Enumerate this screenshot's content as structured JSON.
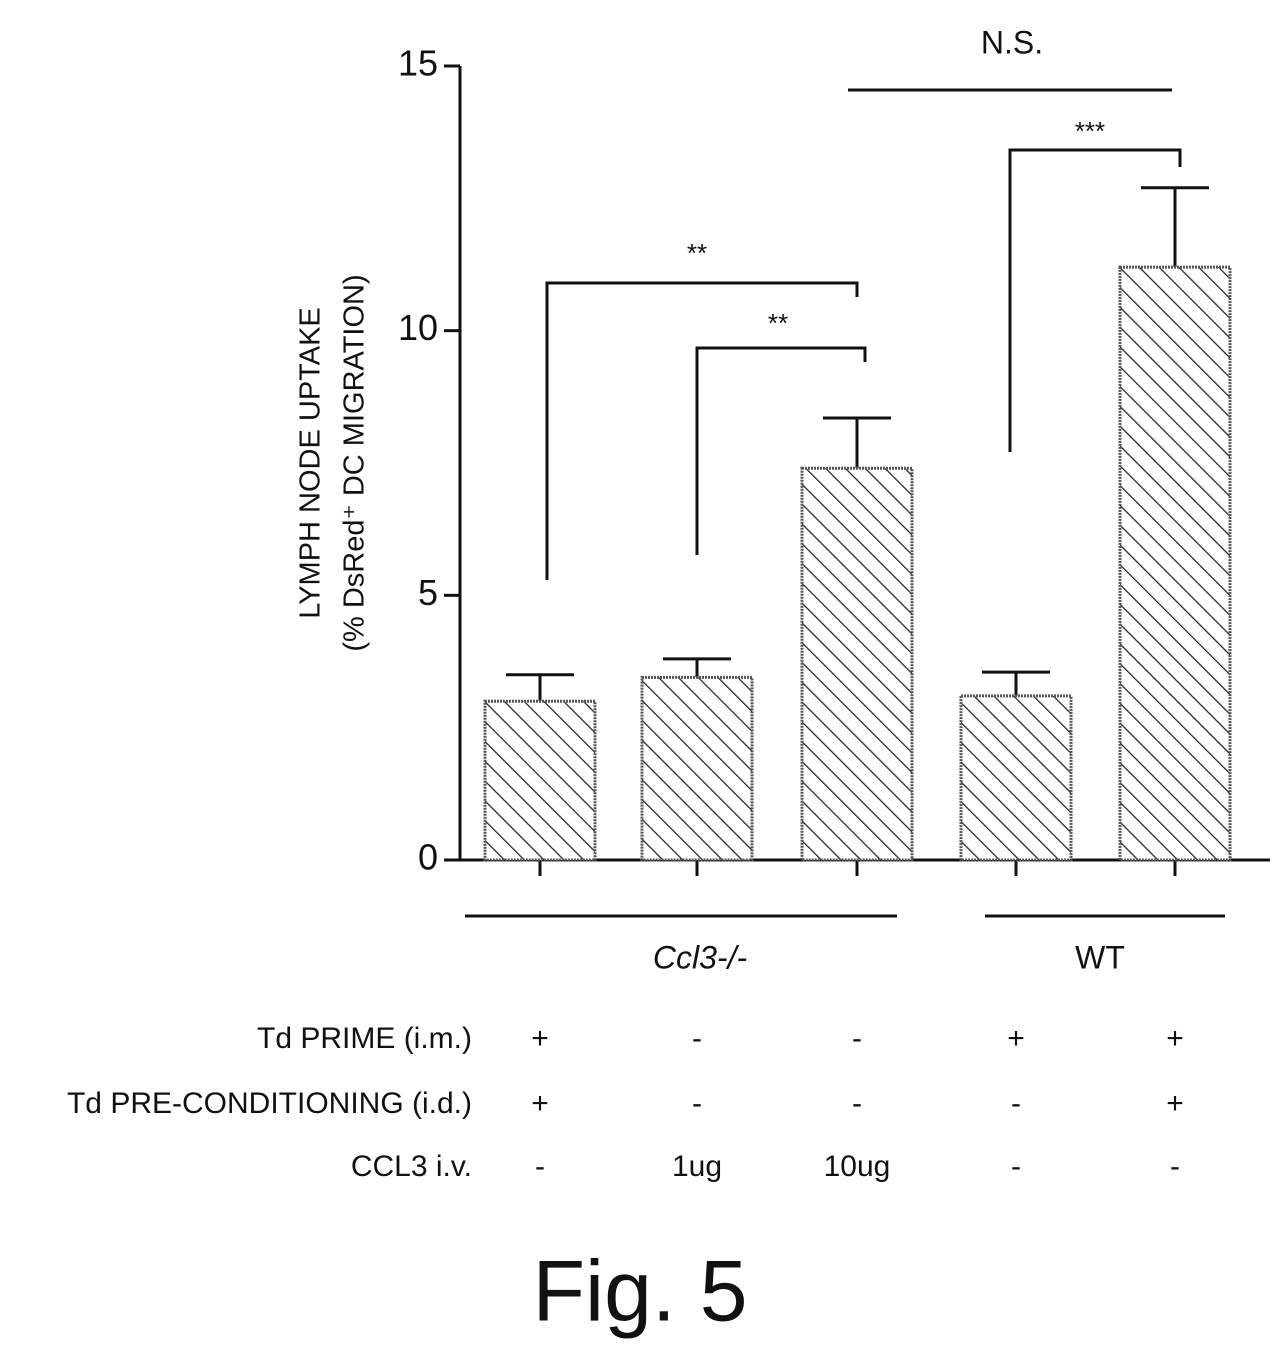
{
  "chart_data": {
    "type": "bar",
    "y_label": [
      "LYMPH NODE UPTAKE",
      "(% DsRed⁺ DC MIGRATION)"
    ],
    "categories": [
      null,
      null,
      null,
      null,
      null
    ],
    "series": [
      {
        "color": "#222222",
        "values": [
          3.0,
          3.45,
          7.4,
          3.1,
          11.2
        ],
        "errors": [
          0.5,
          0.35,
          0.95,
          0.45,
          1.5
        ]
      }
    ],
    "ylim": [
      0,
      15
    ],
    "yticks": [
      0,
      5,
      10,
      15
    ],
    "annotations": [
      "**",
      "**",
      "***",
      "N.S."
    ],
    "groups": [
      "Ccl3-/-",
      "WT"
    ],
    "conditions": [
      {
        "label": "Td PRIME (i.m.)",
        "values": [
          "+",
          "-",
          "-",
          "+",
          "+"
        ]
      },
      {
        "label": "Td PRE-CONDITIONING (i.d.)",
        "values": [
          "+",
          "-",
          "-",
          "-",
          "+"
        ]
      },
      {
        "label": "CCL3 i.v.",
        "values": [
          "-",
          "1ug",
          "10ug",
          "-",
          "-"
        ]
      }
    ],
    "caption": "Fig. 5"
  }
}
